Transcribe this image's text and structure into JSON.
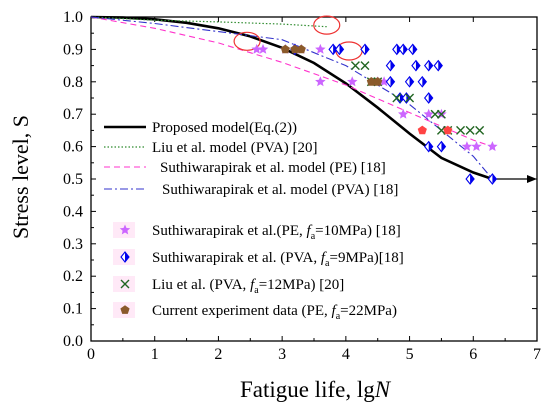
{
  "chart_data": {
    "type": "scatter",
    "xlabel_text": "Fatigue life, lg",
    "xlabel_var": "N",
    "ylabel": "Stress level, S",
    "xlim": [
      0,
      7
    ],
    "ylim": [
      0.0,
      1.0
    ],
    "xticks": [
      0,
      1,
      2,
      3,
      4,
      5,
      6,
      7
    ],
    "xtick_labels": [
      "0",
      "1",
      "2",
      "3",
      "4",
      "5",
      "6",
      "7"
    ],
    "yticks": [
      0.0,
      0.1,
      0.2,
      0.3,
      0.4,
      0.5,
      0.6,
      0.7,
      0.8,
      0.9,
      1.0
    ],
    "ytick_labels": [
      "0.0",
      "0.1",
      "0.2",
      "0.3",
      "0.4",
      "0.5",
      "0.6",
      "0.7",
      "0.8",
      "0.9",
      "1.0"
    ],
    "grid": false,
    "colors": {
      "proposed": "#000000",
      "liu_model": "#2e8b2e",
      "suth_pe_model": "#ff33cc",
      "suth_pva_model": "#3333cc",
      "suth_pe_data": "#cc66ff",
      "suth_pva_data": "#0000ee",
      "liu_data": "#226622",
      "current_data": "#8b5a2b",
      "highlight": "#ff4444",
      "circles": "#ee3333"
    },
    "lines": [
      {
        "name": "Proposed model(Eq.(2))",
        "style": "solid",
        "color_key": "proposed",
        "x": [
          0,
          0.5,
          1.0,
          1.5,
          2.0,
          2.5,
          3.0,
          3.5,
          4.0,
          4.5,
          5.0,
          5.5,
          6.0,
          6.3
        ],
        "y": [
          1.0,
          0.998,
          0.993,
          0.982,
          0.965,
          0.94,
          0.905,
          0.858,
          0.795,
          0.72,
          0.64,
          0.565,
          0.52,
          0.5
        ]
      },
      {
        "name": "Liu et al. model (PVA) [20]",
        "style": "dotted",
        "color_key": "liu_model",
        "x": [
          0,
          1,
          2,
          3,
          3.7
        ],
        "y": [
          1.0,
          0.99,
          0.985,
          0.978,
          0.97
        ]
      },
      {
        "name": "Suthiwarapirak et al. model (PE) [18]",
        "style": "dashed",
        "color_key": "suth_pe_model",
        "x": [
          0,
          1,
          2,
          3,
          4,
          5,
          6,
          6.3
        ],
        "y": [
          1.0,
          0.965,
          0.92,
          0.86,
          0.79,
          0.705,
          0.62,
          0.6
        ]
      },
      {
        "name": "Suthiwarapirak et al. model (PVA) [18]",
        "style": "dashdot",
        "color_key": "suth_pva_model",
        "x": [
          0,
          1,
          2,
          3,
          4,
          5,
          6,
          6.3
        ],
        "y": [
          1.0,
          0.98,
          0.955,
          0.93,
          0.85,
          0.73,
          0.57,
          0.5
        ]
      }
    ],
    "series": [
      {
        "name": "Suthiwarapirak et al.(PE, fa=10MPa) [18]",
        "label_pre": "Suthiwarapirak et al.(PE, ",
        "label_var": "f",
        "label_sub": "a",
        "label_post": "=10MPa) [18]",
        "marker": "star",
        "color_key": "suth_pe_data",
        "points": [
          [
            2.6,
            0.9
          ],
          [
            2.7,
            0.9
          ],
          [
            3.05,
            0.9
          ],
          [
            3.3,
            0.9
          ],
          [
            3.6,
            0.9
          ],
          [
            3.6,
            0.8
          ],
          [
            4.1,
            0.8
          ],
          [
            4.5,
            0.8
          ],
          [
            4.6,
            0.8
          ],
          [
            4.9,
            0.7
          ],
          [
            5.3,
            0.7
          ],
          [
            5.5,
            0.7
          ],
          [
            5.9,
            0.6
          ],
          [
            6.05,
            0.6
          ],
          [
            6.3,
            0.6
          ]
        ]
      },
      {
        "name": "Suthiwarapirak et al. (PVA, fa=9MPa)[18]",
        "label_pre": "Suthiwarapirak et al. (PVA, ",
        "label_var": "f",
        "label_sub": "a",
        "label_post": "=9MPa)[18]",
        "marker": "diamond",
        "color_key": "suth_pva_data",
        "points": [
          [
            3.2,
            0.9
          ],
          [
            3.8,
            0.9
          ],
          [
            3.9,
            0.9
          ],
          [
            4.3,
            0.9
          ],
          [
            4.8,
            0.9
          ],
          [
            4.9,
            0.9
          ],
          [
            5.05,
            0.9
          ],
          [
            4.7,
            0.85
          ],
          [
            5.1,
            0.85
          ],
          [
            5.3,
            0.85
          ],
          [
            5.45,
            0.85
          ],
          [
            4.7,
            0.8
          ],
          [
            5.0,
            0.8
          ],
          [
            5.2,
            0.8
          ],
          [
            4.85,
            0.75
          ],
          [
            4.95,
            0.75
          ],
          [
            5.3,
            0.75
          ],
          [
            5.3,
            0.6
          ],
          [
            5.5,
            0.6
          ],
          [
            5.95,
            0.5
          ],
          [
            6.3,
            0.5
          ]
        ]
      },
      {
        "name": "Liu et al. (PVA, fa=12MPa) [20]",
        "label_pre": "Liu et al. (PVA, ",
        "label_var": "f",
        "label_sub": "a",
        "label_post": "=12MPa) [20]",
        "marker": "x",
        "color_key": "liu_data",
        "points": [
          [
            4.15,
            0.85
          ],
          [
            4.3,
            0.85
          ],
          [
            4.4,
            0.8
          ],
          [
            4.5,
            0.8
          ],
          [
            4.8,
            0.75
          ],
          [
            5.0,
            0.75
          ],
          [
            5.4,
            0.7
          ],
          [
            5.5,
            0.7
          ],
          [
            5.5,
            0.65
          ],
          [
            5.6,
            0.65
          ],
          [
            5.8,
            0.65
          ],
          [
            5.95,
            0.65
          ],
          [
            6.1,
            0.65
          ]
        ]
      },
      {
        "name": "Current experiment data (PE, fa=22MPa)",
        "label_pre": "Current experiment data (PE, ",
        "label_var": "f",
        "label_sub": "a",
        "label_post": "=22MPa)",
        "marker": "pentagon",
        "color_key": "current_data",
        "points": [
          [
            3.05,
            0.9
          ],
          [
            3.2,
            0.9
          ],
          [
            3.3,
            0.9
          ],
          [
            4.4,
            0.8
          ],
          [
            4.5,
            0.8
          ]
        ]
      }
    ],
    "highlight_points": [
      [
        5.2,
        0.65
      ],
      [
        5.6,
        0.65
      ]
    ],
    "annotations": {
      "circles": [
        [
          2.45,
          0.925
        ],
        [
          3.7,
          0.975
        ],
        [
          4.05,
          0.895
        ]
      ],
      "arrow_from": [
        6.3,
        0.5
      ],
      "arrow_to": [
        7.0,
        0.5
      ]
    }
  }
}
